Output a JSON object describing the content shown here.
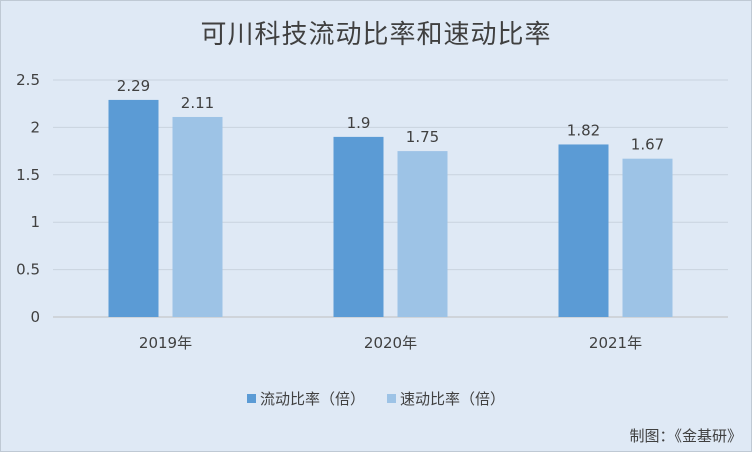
{
  "chart_data": {
    "type": "bar",
    "title": "可川科技流动比率和速动比率",
    "categories": [
      "2019年",
      "2020年",
      "2021年"
    ],
    "series": [
      {
        "name": "流动比率（倍）",
        "values": [
          2.29,
          1.9,
          1.82
        ],
        "color": "#5b9bd5"
      },
      {
        "name": "速动比率（倍）",
        "values": [
          2.11,
          1.75,
          1.67
        ],
        "color": "#9dc3e6"
      }
    ],
    "data_labels": [
      [
        "2.29",
        "1.9",
        "1.82"
      ],
      [
        "2.11",
        "1.75",
        "1.67"
      ]
    ],
    "y_ticks": [
      "0",
      "0.5",
      "1",
      "1.5",
      "2",
      "2.5"
    ],
    "ylim": [
      0,
      2.5
    ],
    "grid": true,
    "legend_position": "bottom"
  },
  "credit": "制图：《金基研》"
}
